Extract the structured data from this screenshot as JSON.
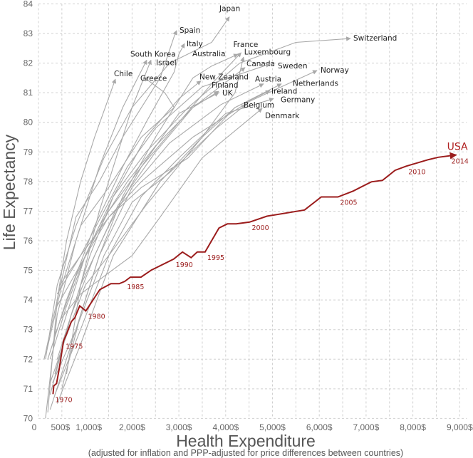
{
  "chart_data": {
    "type": "line",
    "xlabel": "Health Expenditure",
    "xlabel_note": "(adjusted for inflation and PPP-adjusted for price differences between countries)",
    "ylabel": "Life Expectancy",
    "xlim": [
      0,
      9000
    ],
    "ylim": [
      70,
      84
    ],
    "x_ticks": [
      {
        "value": 0,
        "label": "0"
      },
      {
        "value": 500,
        "label": "500$"
      },
      {
        "value": 1000,
        "label": "1,000$"
      },
      {
        "value": 2000,
        "label": "2,000$"
      },
      {
        "value": 3000,
        "label": "3,000$"
      },
      {
        "value": 4000,
        "label": "4,000$"
      },
      {
        "value": 5000,
        "label": "5,000$"
      },
      {
        "value": 6000,
        "label": "6,000$"
      },
      {
        "value": 7000,
        "label": "7,000$"
      },
      {
        "value": 8000,
        "label": "8,000$"
      },
      {
        "value": 9000,
        "label": "9,000$"
      }
    ],
    "y_ticks": [
      "70",
      "71",
      "72",
      "73",
      "74",
      "75",
      "76",
      "77",
      "78",
      "79",
      "80",
      "81",
      "82",
      "83",
      "84"
    ],
    "grid": true,
    "highlight": {
      "name": "USA",
      "color": "#9b1c1c",
      "end_year": "2014",
      "points": [
        [
          310,
          70.82
        ],
        [
          327,
          71.1
        ],
        [
          387,
          71.18
        ],
        [
          446,
          71.7
        ],
        [
          536,
          72.62
        ],
        [
          595,
          72.83
        ],
        [
          702,
          73.27
        ],
        [
          774,
          73.39
        ],
        [
          881,
          73.8
        ],
        [
          1012,
          73.63
        ],
        [
          1310,
          74.35
        ],
        [
          1548,
          74.55
        ],
        [
          1726,
          74.55
        ],
        [
          1845,
          74.63
        ],
        [
          1964,
          74.77
        ],
        [
          2190,
          74.77
        ],
        [
          2411,
          75.01
        ],
        [
          2887,
          75.38
        ],
        [
          3077,
          75.62
        ],
        [
          3262,
          75.43
        ],
        [
          3393,
          75.62
        ],
        [
          3560,
          75.62
        ],
        [
          3857,
          76.43
        ],
        [
          4036,
          76.57
        ],
        [
          4226,
          76.57
        ],
        [
          4512,
          76.63
        ],
        [
          4881,
          76.83
        ],
        [
          5685,
          77.04
        ],
        [
          6042,
          77.48
        ],
        [
          6399,
          77.48
        ],
        [
          6726,
          77.68
        ],
        [
          7113,
          77.99
        ],
        [
          7351,
          78.04
        ],
        [
          7619,
          78.38
        ],
        [
          7857,
          78.52
        ],
        [
          8333,
          78.74
        ],
        [
          8542,
          78.82
        ],
        [
          8929,
          78.9
        ]
      ],
      "year_labels": [
        {
          "year": "1970",
          "point": 0
        },
        {
          "year": "1975",
          "point": 4
        },
        {
          "year": "1980",
          "point": 9
        },
        {
          "year": "1985",
          "point": 13
        },
        {
          "year": "1990",
          "point": 17
        },
        {
          "year": "1995",
          "point": 21
        },
        {
          "year": "2000",
          "point": 25
        },
        {
          "year": "2005",
          "point": 29
        },
        {
          "year": "2010",
          "point": 34
        }
      ]
    },
    "series": [
      {
        "name": "Japan",
        "points": [
          [
            150,
            72
          ],
          [
            400,
            74.5
          ],
          [
            800,
            76.5
          ],
          [
            1400,
            78.8
          ],
          [
            2000,
            80.5
          ],
          [
            2800,
            82.0
          ],
          [
            3700,
            82.7
          ],
          [
            4079,
            83.56
          ]
        ]
      },
      {
        "name": "Spain",
        "points": [
          [
            120,
            72
          ],
          [
            400,
            74
          ],
          [
            800,
            76.8
          ],
          [
            1300,
            78
          ],
          [
            1800,
            79.5
          ],
          [
            2600,
            81.5
          ],
          [
            2900,
            82.9
          ],
          [
            2953,
            83.1
          ]
        ]
      },
      {
        "name": "Italy",
        "points": [
          [
            200,
            72
          ],
          [
            600,
            74
          ],
          [
            1200,
            76.5
          ],
          [
            1800,
            78.5
          ],
          [
            2300,
            80
          ],
          [
            2900,
            81.7
          ],
          [
            3000,
            82.3
          ],
          [
            3120,
            82.66
          ]
        ]
      },
      {
        "name": "South Korea",
        "points": [
          [
            150,
            70
          ],
          [
            400,
            73.5
          ],
          [
            800,
            76
          ],
          [
            1300,
            78.5
          ],
          [
            1800,
            80.5
          ],
          [
            2314,
            82.1
          ]
        ]
      },
      {
        "name": "Israel",
        "points": [
          [
            600,
            71.5
          ],
          [
            900,
            74.5
          ],
          [
            1300,
            77
          ],
          [
            1700,
            79
          ],
          [
            2000,
            80.5
          ],
          [
            2405,
            82.1
          ]
        ]
      },
      {
        "name": "Chile",
        "points": [
          [
            200,
            70.2
          ],
          [
            400,
            74
          ],
          [
            600,
            76
          ],
          [
            900,
            78
          ],
          [
            1200,
            79.5
          ],
          [
            1644,
            81.46
          ]
        ]
      },
      {
        "name": "Greece",
        "points": [
          [
            180,
            72.3
          ],
          [
            500,
            74.5
          ],
          [
            900,
            76.5
          ],
          [
            1500,
            77.8
          ],
          [
            2200,
            79.5
          ],
          [
            2900,
            80.5
          ],
          [
            2700,
            81
          ],
          [
            2253,
            81.52
          ]
        ]
      },
      {
        "name": "Australia",
        "points": [
          [
            500,
            71
          ],
          [
            900,
            73.5
          ],
          [
            1300,
            75.5
          ],
          [
            1800,
            77.5
          ],
          [
            2500,
            79.5
          ],
          [
            3300,
            81.5
          ],
          [
            3700,
            81.9
          ],
          [
            4262,
            82.3
          ]
        ]
      },
      {
        "name": "France",
        "points": [
          [
            400,
            72
          ],
          [
            900,
            74.5
          ],
          [
            1500,
            76.5
          ],
          [
            2200,
            78.5
          ],
          [
            3000,
            80
          ],
          [
            3700,
            81.3
          ],
          [
            4330,
            82.35
          ]
        ]
      },
      {
        "name": "Luxembourg",
        "points": [
          [
            400,
            70.5
          ],
          [
            900,
            72.5
          ],
          [
            1600,
            75.5
          ],
          [
            2600,
            78
          ],
          [
            3500,
            79.5
          ],
          [
            4200,
            81
          ],
          [
            4380,
            82.2
          ]
        ]
      },
      {
        "name": "Canada",
        "points": [
          [
            350,
            72.8
          ],
          [
            800,
            74.8
          ],
          [
            1300,
            76.5
          ],
          [
            1900,
            78
          ],
          [
            2500,
            79.2
          ],
          [
            3300,
            80.5
          ],
          [
            4414,
            81.85
          ]
        ]
      },
      {
        "name": "Sweden",
        "points": [
          [
            450,
            74.5
          ],
          [
            900,
            75.5
          ],
          [
            1400,
            77
          ],
          [
            1900,
            78.5
          ],
          [
            2500,
            79.8
          ],
          [
            3500,
            81.2
          ],
          [
            4947,
            81.97
          ]
        ]
      },
      {
        "name": "Switzerland",
        "points": [
          [
            500,
            73
          ],
          [
            1000,
            75.5
          ],
          [
            1600,
            77.5
          ],
          [
            2300,
            79
          ],
          [
            3200,
            80.5
          ],
          [
            4300,
            82
          ],
          [
            5500,
            82.7
          ],
          [
            6667,
            82.83
          ]
        ]
      },
      {
        "name": "Norway",
        "points": [
          [
            400,
            74.2
          ],
          [
            900,
            75.5
          ],
          [
            1500,
            76.8
          ],
          [
            2200,
            78
          ],
          [
            3300,
            79.5
          ],
          [
            4500,
            80.7
          ],
          [
            5951,
            81.75
          ]
        ]
      },
      {
        "name": "New Zealand",
        "points": [
          [
            350,
            71.5
          ],
          [
            700,
            73.5
          ],
          [
            1100,
            75.5
          ],
          [
            1600,
            77.5
          ],
          [
            2300,
            79.5
          ],
          [
            3000,
            80.8
          ],
          [
            3470,
            81.4
          ]
        ]
      },
      {
        "name": "Finland",
        "points": [
          [
            250,
            70.8
          ],
          [
            700,
            73.5
          ],
          [
            1200,
            75.5
          ],
          [
            1700,
            77.2
          ],
          [
            2500,
            79
          ],
          [
            3300,
            80.5
          ],
          [
            3851,
            81.05
          ]
        ]
      },
      {
        "name": "UK",
        "points": [
          [
            250,
            72
          ],
          [
            600,
            73.8
          ],
          [
            1000,
            75.5
          ],
          [
            1500,
            77
          ],
          [
            2200,
            78.5
          ],
          [
            3000,
            80.3
          ],
          [
            3851,
            81.0
          ]
        ]
      },
      {
        "name": "Austria",
        "points": [
          [
            250,
            70.3
          ],
          [
            700,
            72.5
          ],
          [
            1300,
            75.5
          ],
          [
            2000,
            77.8
          ],
          [
            2800,
            79.3
          ],
          [
            3900,
            80.6
          ],
          [
            4810,
            81.3
          ]
        ]
      },
      {
        "name": "Netherlands",
        "points": [
          [
            400,
            73.8
          ],
          [
            900,
            75.2
          ],
          [
            1500,
            76.8
          ],
          [
            2200,
            77.8
          ],
          [
            3200,
            78.8
          ],
          [
            4200,
            80.5
          ],
          [
            5190,
            81.3
          ]
        ]
      },
      {
        "name": "Ireland",
        "points": [
          [
            250,
            71.2
          ],
          [
            600,
            72.8
          ],
          [
            1000,
            74.5
          ],
          [
            1500,
            75.5
          ],
          [
            2300,
            77.2
          ],
          [
            3500,
            79.5
          ],
          [
            4200,
            80.5
          ],
          [
            4947,
            81.07
          ]
        ]
      },
      {
        "name": "Germany",
        "points": [
          [
            350,
            70.8
          ],
          [
            900,
            73
          ],
          [
            1500,
            75.5
          ],
          [
            2200,
            77.5
          ],
          [
            3000,
            78.8
          ],
          [
            4000,
            80.3
          ],
          [
            5023,
            80.8
          ]
        ]
      },
      {
        "name": "Belgium",
        "points": [
          [
            300,
            71.2
          ],
          [
            800,
            73
          ],
          [
            1400,
            75.5
          ],
          [
            2000,
            77.3
          ],
          [
            2800,
            78.3
          ],
          [
            3800,
            79.8
          ],
          [
            4430,
            80.6
          ]
        ]
      },
      {
        "name": "Denmark",
        "points": [
          [
            450,
            73.3
          ],
          [
            900,
            74.2
          ],
          [
            1400,
            74.8
          ],
          [
            2000,
            75.5
          ],
          [
            2600,
            76.8
          ],
          [
            3500,
            78.8
          ],
          [
            4780,
            80.47
          ]
        ]
      }
    ]
  }
}
